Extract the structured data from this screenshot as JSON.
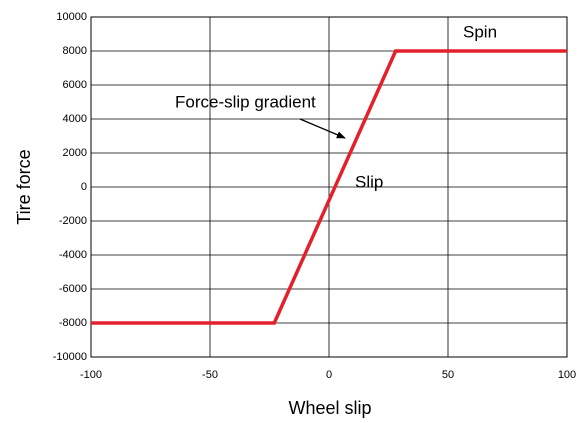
{
  "chart_data": {
    "type": "line",
    "xlabel": "Wheel slip",
    "ylabel": "Tire force",
    "x": [
      -100,
      -23,
      28,
      100
    ],
    "series": [
      {
        "name": null,
        "color": "#e3202b",
        "values": [
          -8000,
          -8000,
          8000,
          8000
        ]
      }
    ],
    "xlim": [
      -100,
      100
    ],
    "xticks": [
      -100,
      -50,
      0,
      50,
      100
    ],
    "ylim": [
      -10000,
      10000
    ],
    "yticks": [
      -10000,
      -8000,
      -6000,
      -4000,
      -2000,
      0,
      2000,
      4000,
      6000,
      8000,
      10000
    ],
    "grid": true,
    "annotations": [
      "Spin",
      "Force-slip gradient",
      "Slip"
    ]
  }
}
